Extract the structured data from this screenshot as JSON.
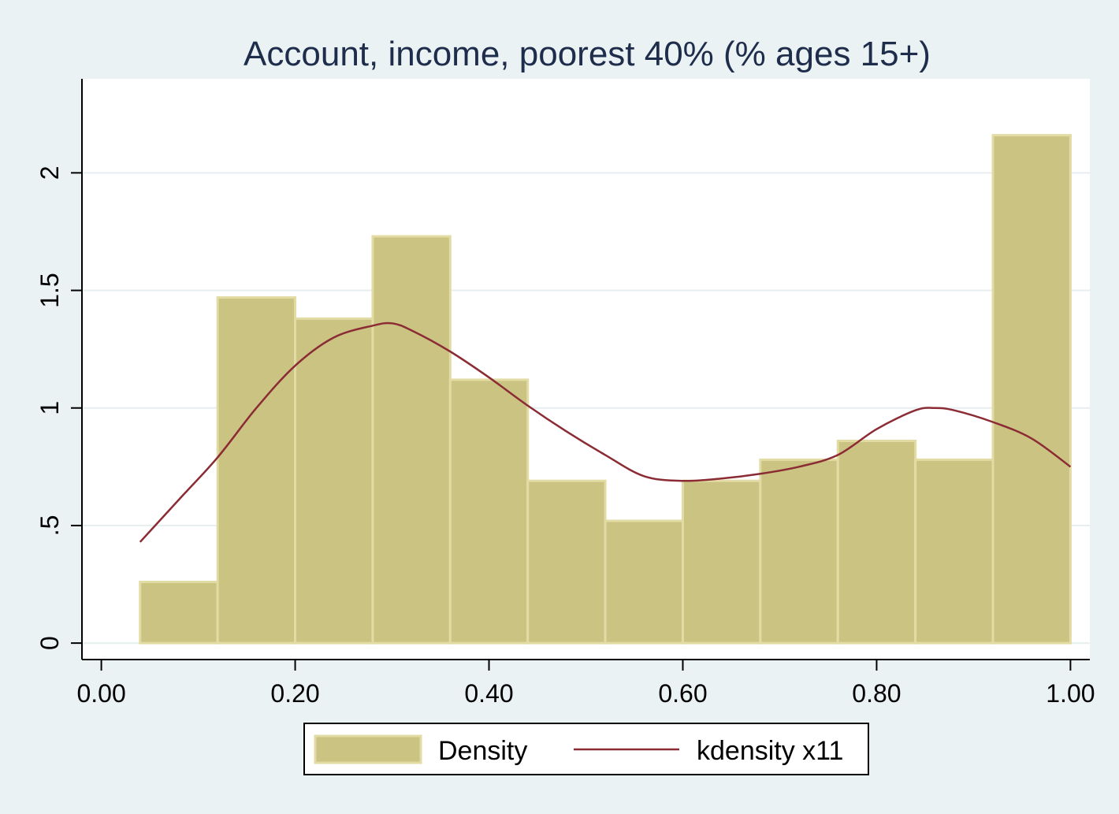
{
  "chart_data": {
    "type": "bar",
    "title": "Account, income, poorest 40% (% ages 15+)",
    "xlabel": "",
    "ylabel": "",
    "xlim": [
      -0.02,
      1.02
    ],
    "ylim": [
      -0.07,
      2.4
    ],
    "x_ticks": [
      0.0,
      0.2,
      0.4,
      0.6,
      0.8,
      1.0
    ],
    "x_tick_labels": [
      "0.00",
      "0.20",
      "0.40",
      "0.60",
      "0.80",
      "1.00"
    ],
    "y_ticks": [
      0,
      0.5,
      1,
      1.5,
      2
    ],
    "y_tick_labels": [
      "0",
      ".5",
      "1",
      "1.5",
      "2"
    ],
    "grid": true,
    "legend_position": "bottom",
    "histogram": {
      "name": "Density",
      "color": "#cbc382",
      "edge_color": "#e2dba4",
      "bins": [
        {
          "x0": 0.04,
          "x1": 0.12,
          "value": 0.26
        },
        {
          "x0": 0.12,
          "x1": 0.2,
          "value": 1.47
        },
        {
          "x0": 0.2,
          "x1": 0.28,
          "value": 1.38
        },
        {
          "x0": 0.28,
          "x1": 0.36,
          "value": 1.73
        },
        {
          "x0": 0.36,
          "x1": 0.44,
          "value": 1.12
        },
        {
          "x0": 0.44,
          "x1": 0.52,
          "value": 0.69
        },
        {
          "x0": 0.52,
          "x1": 0.6,
          "value": 0.52
        },
        {
          "x0": 0.6,
          "x1": 0.68,
          "value": 0.69
        },
        {
          "x0": 0.68,
          "x1": 0.76,
          "value": 0.78
        },
        {
          "x0": 0.76,
          "x1": 0.84,
          "value": 0.86
        },
        {
          "x0": 0.84,
          "x1": 0.92,
          "value": 0.78
        },
        {
          "x0": 0.92,
          "x1": 1.0,
          "value": 2.16
        }
      ]
    },
    "kdensity": {
      "name": "kdensity x11",
      "color": "#8b2c35",
      "x": [
        0.04,
        0.08,
        0.12,
        0.16,
        0.2,
        0.24,
        0.28,
        0.3,
        0.32,
        0.36,
        0.4,
        0.44,
        0.48,
        0.52,
        0.56,
        0.6,
        0.64,
        0.68,
        0.72,
        0.76,
        0.8,
        0.84,
        0.86,
        0.88,
        0.92,
        0.96,
        1.0
      ],
      "y": [
        0.43,
        0.61,
        0.79,
        1.0,
        1.18,
        1.3,
        1.35,
        1.36,
        1.33,
        1.24,
        1.13,
        1.01,
        0.9,
        0.8,
        0.71,
        0.69,
        0.7,
        0.72,
        0.75,
        0.8,
        0.91,
        0.99,
        1.0,
        0.99,
        0.94,
        0.87,
        0.75
      ]
    }
  }
}
